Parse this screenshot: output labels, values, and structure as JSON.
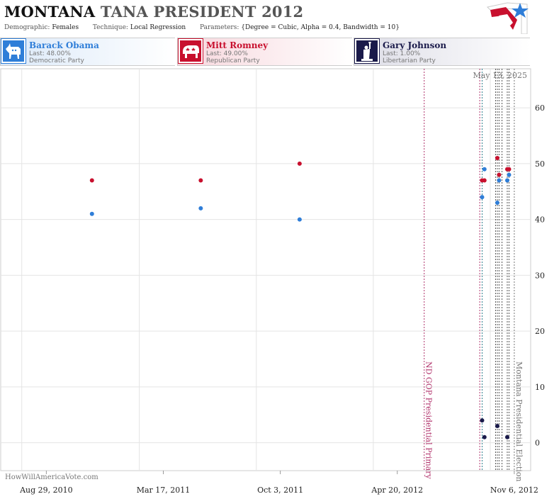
{
  "header": {
    "title_state": "MONTANA",
    "title_race": "TANA PRESIDENT 2012",
    "demographic_label": "Demographic:",
    "demographic_value": "Females",
    "technique_label": "Technique:",
    "technique_value": "Local Regression",
    "parameters_label": "Parameters:",
    "parameters_value": "{Degree = Cubic, Alpha = 0.4, Bandwidth = 10}"
  },
  "candidates": [
    {
      "name": "Barack Obama",
      "last": "Last: 48.00%",
      "party": "Democratic Party",
      "color": "#2f7ed8",
      "icon": "donkey-icon"
    },
    {
      "name": "Mitt Romney",
      "last": "Last: 49.00%",
      "party": "Republican Party",
      "color": "#c8102e",
      "icon": "elephant-icon"
    },
    {
      "name": "Gary Johnson",
      "last": "Last: 1.00%",
      "party": "Libertarian Party",
      "color": "#1a1a4a",
      "icon": "statue-of-liberty-icon"
    }
  ],
  "watermark": "HowWillAmericaVote.com",
  "chart_data": {
    "type": "scatter",
    "date_stamp": "May 13, 2025",
    "x_ticks": [
      "Aug 29, 2010",
      "Mar 17, 2011",
      "Oct 3, 2011",
      "Apr 20, 2012",
      "Nov 6, 2012"
    ],
    "y_ticks": [
      0,
      10,
      20,
      30,
      40,
      50,
      60
    ],
    "ylim": [
      -5,
      67
    ],
    "xlim": [
      "2010-06-12",
      "2012-12-04"
    ],
    "grid": true,
    "series": [
      {
        "name": "Barack Obama",
        "color": "#2f7ed8",
        "points": [
          {
            "x": "2010-11-15",
            "y": 41
          },
          {
            "x": "2011-05-20",
            "y": 42
          },
          {
            "x": "2011-11-05",
            "y": 40
          },
          {
            "x": "2012-09-12",
            "y": 44
          },
          {
            "x": "2012-09-16",
            "y": 49
          },
          {
            "x": "2012-10-08",
            "y": 43
          },
          {
            "x": "2012-10-11",
            "y": 47
          },
          {
            "x": "2012-10-25",
            "y": 47
          },
          {
            "x": "2012-10-28",
            "y": 48
          }
        ]
      },
      {
        "name": "Mitt Romney",
        "color": "#c8102e",
        "points": [
          {
            "x": "2010-11-15",
            "y": 47
          },
          {
            "x": "2011-05-20",
            "y": 47
          },
          {
            "x": "2011-11-05",
            "y": 50
          },
          {
            "x": "2012-09-12",
            "y": 47
          },
          {
            "x": "2012-09-16",
            "y": 47
          },
          {
            "x": "2012-10-08",
            "y": 51
          },
          {
            "x": "2012-10-11",
            "y": 48
          },
          {
            "x": "2012-10-25",
            "y": 49
          },
          {
            "x": "2012-10-28",
            "y": 49
          }
        ]
      },
      {
        "name": "Gary Johnson",
        "color": "#1a1a4a",
        "points": [
          {
            "x": "2012-09-12",
            "y": 4
          },
          {
            "x": "2012-09-16",
            "y": 1
          },
          {
            "x": "2012-10-08",
            "y": 3
          },
          {
            "x": "2012-10-25",
            "y": 1
          }
        ]
      }
    ],
    "events": [
      {
        "date": "2012-06-05",
        "label": "ND GOP Presidential Primary",
        "color": "#b0306a"
      },
      {
        "date": "2012-11-06",
        "label": "Montana Presidential Election",
        "color": "#777777"
      }
    ],
    "marker_lines": [
      {
        "date": "2012-09-08",
        "color": "#b0306a"
      },
      {
        "date": "2012-09-12",
        "color": "#2a7a8a"
      },
      {
        "date": "2012-10-05",
        "color": "#555555"
      },
      {
        "date": "2012-10-08",
        "color": "#555555"
      },
      {
        "date": "2012-10-11",
        "color": "#555555"
      },
      {
        "date": "2012-10-16",
        "color": "#555555"
      },
      {
        "date": "2012-10-25",
        "color": "#555555"
      },
      {
        "date": "2012-10-28",
        "color": "#555555"
      }
    ]
  }
}
